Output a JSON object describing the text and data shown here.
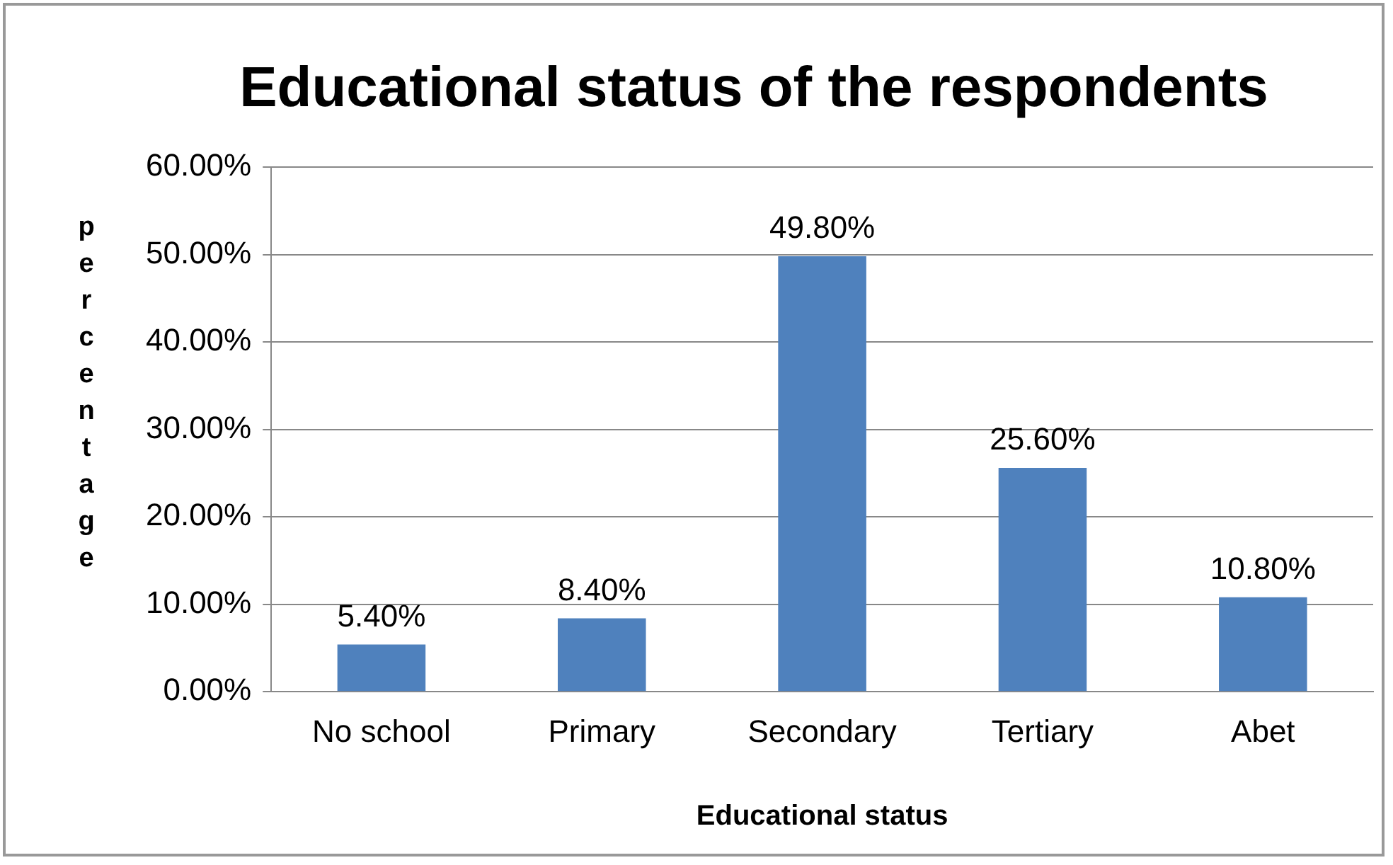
{
  "chart_data": {
    "type": "bar",
    "title": "Educational status of the respondents",
    "xlabel": "Educational status",
    "ylabel": "percentage",
    "categories": [
      "No school",
      "Primary",
      "Secondary",
      "Tertiary",
      "Abet"
    ],
    "values": [
      5.4,
      8.4,
      49.8,
      25.6,
      10.8
    ],
    "value_labels": [
      "5.40%",
      "8.40%",
      "49.80%",
      "25.60%",
      "10.80%"
    ],
    "color": "#4f81bd",
    "ylim": [
      0,
      60
    ],
    "yticks": [
      {
        "value": 0,
        "label": "0.00%"
      },
      {
        "value": 10,
        "label": "10.00%"
      },
      {
        "value": 20,
        "label": "20.00%"
      },
      {
        "value": 30,
        "label": "30.00%"
      },
      {
        "value": 40,
        "label": "40.00%"
      },
      {
        "value": 50,
        "label": "50.00%"
      },
      {
        "value": 60,
        "label": "60.00%"
      }
    ],
    "grid": "y",
    "legend": false
  }
}
